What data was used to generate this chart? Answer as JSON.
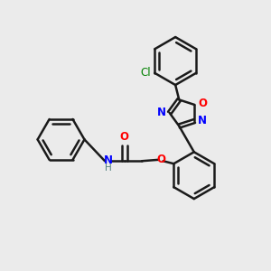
{
  "bg_color": "#ebebeb",
  "bond_color": "#1a1a1a",
  "N_color": "#0000ff",
  "O_color": "#ff0000",
  "Cl_color": "#008000",
  "H_color": "#508080",
  "line_width": 1.8,
  "figsize": [
    3.0,
    3.0
  ],
  "dpi": 100,
  "xlim": [
    0,
    10
  ],
  "ylim": [
    0,
    10
  ]
}
